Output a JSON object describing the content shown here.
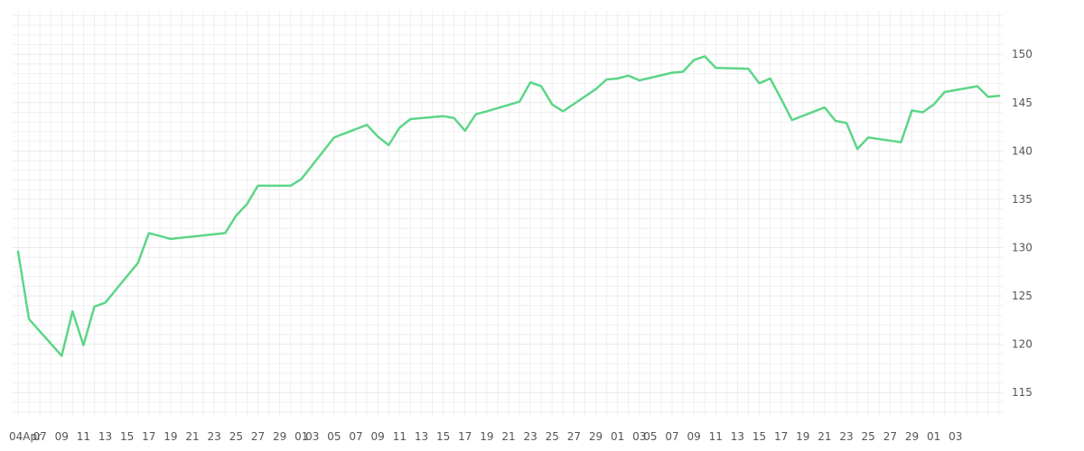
{
  "chart_data": {
    "type": "line",
    "x_tick_labels": [
      "04Apr",
      "07",
      "09",
      "11",
      "13",
      "15",
      "17",
      "19",
      "21",
      "23",
      "25",
      "27",
      "29",
      "01",
      "03",
      "05",
      "07",
      "09",
      "11",
      "13",
      "15",
      "17",
      "19",
      "21",
      "23",
      "25",
      "27",
      "29",
      "01",
      "03",
      "05",
      "07",
      "09",
      "11",
      "13",
      "15",
      "17",
      "19",
      "21",
      "23",
      "25",
      "27",
      "29",
      "01",
      "03"
    ],
    "y_ticks": [
      115,
      120,
      125,
      130,
      135,
      140,
      145,
      150
    ],
    "ylim": [
      112.5,
      154.5
    ],
    "grid": true,
    "color": "#5cd688",
    "series": [
      {
        "dates": [
          "2023-04-04",
          "2023-04-05",
          "2023-04-08",
          "2023-04-09",
          "2023-04-10",
          "2023-04-11",
          "2023-04-12",
          "2023-04-15",
          "2023-04-16",
          "2023-04-17",
          "2023-04-18",
          "2023-04-23",
          "2023-04-24",
          "2023-04-25",
          "2023-04-26",
          "2023-04-29",
          "2023-04-30",
          "2023-05-03",
          "2023-05-06",
          "2023-05-07",
          "2023-05-08",
          "2023-05-09",
          "2023-05-10",
          "2023-05-13",
          "2023-05-14",
          "2023-05-15",
          "2023-05-16",
          "2023-05-17",
          "2023-05-20",
          "2023-05-21",
          "2023-05-22",
          "2023-05-23",
          "2023-05-24",
          "2023-05-27",
          "2023-05-28",
          "2023-05-29",
          "2023-05-30",
          "2023-05-31",
          "2023-06-03",
          "2023-06-04",
          "2023-06-05",
          "2023-06-06",
          "2023-06-07",
          "2023-06-10",
          "2023-06-11",
          "2023-06-12",
          "2023-06-13",
          "2023-06-14",
          "2023-06-17",
          "2023-06-18",
          "2023-06-19",
          "2023-06-20",
          "2023-06-21",
          "2023-06-24",
          "2023-06-25",
          "2023-06-26",
          "2023-06-27",
          "2023-06-28",
          "2023-07-01",
          "2023-07-02",
          "2023-07-03"
        ],
        "values": [
          129.6,
          122.6,
          118.8,
          123.4,
          119.9,
          123.9,
          124.3,
          128.4,
          131.5,
          131.2,
          130.9,
          131.5,
          133.3,
          134.5,
          136.4,
          136.4,
          137.1,
          141.4,
          142.7,
          141.5,
          140.6,
          142.4,
          143.3,
          143.6,
          143.4,
          142.1,
          143.8,
          144.1,
          145.1,
          147.1,
          146.7,
          144.8,
          144.1,
          146.4,
          147.4,
          147.5,
          147.8,
          147.3,
          148.1,
          148.2,
          149.4,
          149.8,
          148.6,
          148.5,
          147.0,
          147.5,
          145.4,
          143.2,
          144.5,
          143.1,
          142.9,
          140.2,
          141.4,
          140.9,
          144.2,
          144.0,
          144.8,
          146.1,
          146.7,
          145.6,
          145.7
        ]
      }
    ]
  }
}
